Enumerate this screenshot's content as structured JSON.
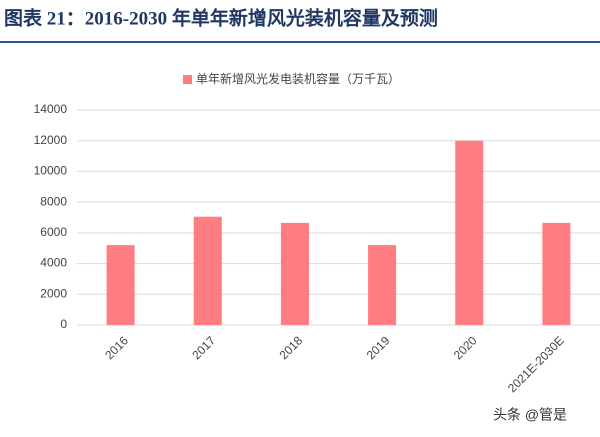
{
  "chart_data": {
    "type": "bar",
    "title": "图表 21：2016-2030 年单年新增风光装机容量及预测",
    "categories": [
      "2016",
      "2017",
      "2018",
      "2019",
      "2020",
      "2021E-2030E"
    ],
    "series": [
      {
        "name": "单年新增风光发电装机容量（万千瓦）",
        "color": "#ff7c80",
        "values": [
          5200,
          7050,
          6650,
          5200,
          12000,
          6650
        ]
      }
    ],
    "ylim": [
      0,
      14000
    ],
    "yticks": [
      0,
      2000,
      4000,
      6000,
      8000,
      10000,
      12000,
      14000
    ],
    "grid": true,
    "watermark": "头条 @管是"
  }
}
